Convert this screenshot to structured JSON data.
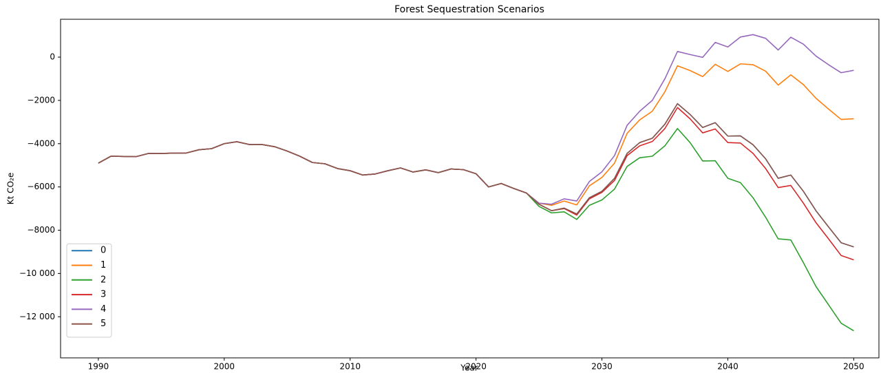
{
  "chart_data": {
    "type": "line",
    "title": "Forest Sequestration Scenarios",
    "x_label": "Year",
    "y_label": "Kt CO₂e",
    "x": [
      1990,
      1991,
      1992,
      1993,
      1994,
      1995,
      1996,
      1997,
      1998,
      1999,
      2000,
      2001,
      2002,
      2003,
      2004,
      2005,
      2006,
      2007,
      2008,
      2009,
      2010,
      2011,
      2012,
      2013,
      2014,
      2015,
      2016,
      2017,
      2018,
      2019,
      2020,
      2021,
      2022,
      2023,
      2024,
      2025,
      2026,
      2027,
      2028,
      2029,
      2030,
      2031,
      2032,
      2033,
      2034,
      2035,
      2036,
      2037,
      2038,
      2039,
      2040,
      2041,
      2042,
      2043,
      2044,
      2045,
      2046,
      2047,
      2048,
      2049,
      2050
    ],
    "series": [
      {
        "name": "0",
        "color": "#1f77b4",
        "values": [
          -4900,
          -4580,
          -4590,
          -4600,
          -4450,
          -4450,
          -4440,
          -4430,
          -4280,
          -4230,
          -4000,
          -3910,
          -4040,
          -4040,
          -4140,
          -4340,
          -4580,
          -4870,
          -4930,
          -5150,
          -5250,
          -5450,
          -5400,
          -5250,
          -5120,
          -5310,
          -5210,
          -5340,
          -5170,
          -5200,
          -5390,
          -6000,
          -5840,
          -6070,
          -6280,
          -6800,
          -7100,
          -6980,
          -7250,
          -6500,
          -6200,
          -5600,
          -4450,
          -3950,
          -3750,
          -3100,
          -2150,
          -2650,
          -3250,
          -3030,
          -3650,
          -3640,
          -4050,
          -4700,
          -5600,
          -5450,
          -6200,
          -7100,
          -7850,
          -8580,
          -8770
        ]
      },
      {
        "name": "1",
        "color": "#ff7f0e",
        "values": [
          -4900,
          -4580,
          -4590,
          -4600,
          -4450,
          -4450,
          -4440,
          -4430,
          -4280,
          -4230,
          -4000,
          -3910,
          -4040,
          -4040,
          -4140,
          -4340,
          -4580,
          -4870,
          -4930,
          -5150,
          -5250,
          -5450,
          -5400,
          -5250,
          -5120,
          -5310,
          -5210,
          -5340,
          -5170,
          -5200,
          -5390,
          -6000,
          -5840,
          -6070,
          -6280,
          -6750,
          -6850,
          -6650,
          -6830,
          -5950,
          -5560,
          -4900,
          -3520,
          -2900,
          -2500,
          -1600,
          -400,
          -620,
          -900,
          -330,
          -660,
          -310,
          -350,
          -650,
          -1290,
          -820,
          -1270,
          -1900,
          -2400,
          -2880,
          -2850
        ]
      },
      {
        "name": "2",
        "color": "#2ca02c",
        "values": [
          -4900,
          -4580,
          -4590,
          -4600,
          -4450,
          -4450,
          -4440,
          -4430,
          -4280,
          -4230,
          -4000,
          -3910,
          -4040,
          -4040,
          -4140,
          -4340,
          -4580,
          -4870,
          -4930,
          -5150,
          -5250,
          -5450,
          -5400,
          -5250,
          -5120,
          -5310,
          -5210,
          -5340,
          -5170,
          -5200,
          -5390,
          -6000,
          -5840,
          -6070,
          -6280,
          -6900,
          -7200,
          -7150,
          -7500,
          -6850,
          -6600,
          -6100,
          -5050,
          -4650,
          -4580,
          -4100,
          -3300,
          -3950,
          -4800,
          -4790,
          -5600,
          -5800,
          -6500,
          -7400,
          -8400,
          -8450,
          -9500,
          -10600,
          -11450,
          -12300,
          -12650
        ]
      },
      {
        "name": "3",
        "color": "#d62728",
        "values": [
          -4900,
          -4580,
          -4590,
          -4600,
          -4450,
          -4450,
          -4440,
          -4430,
          -4280,
          -4230,
          -4000,
          -3910,
          -4040,
          -4040,
          -4140,
          -4340,
          -4580,
          -4870,
          -4930,
          -5150,
          -5250,
          -5450,
          -5400,
          -5250,
          -5120,
          -5310,
          -5210,
          -5340,
          -5170,
          -5200,
          -5390,
          -6000,
          -5840,
          -6070,
          -6280,
          -6800,
          -7100,
          -7000,
          -7300,
          -6550,
          -6250,
          -5700,
          -4550,
          -4100,
          -3900,
          -3300,
          -2330,
          -2850,
          -3500,
          -3320,
          -3950,
          -3970,
          -4450,
          -5150,
          -6030,
          -5930,
          -6750,
          -7650,
          -8400,
          -9170,
          -9370
        ]
      },
      {
        "name": "4",
        "color": "#9467bd",
        "values": [
          -4900,
          -4580,
          -4590,
          -4600,
          -4450,
          -4450,
          -4440,
          -4430,
          -4280,
          -4230,
          -4000,
          -3910,
          -4040,
          -4040,
          -4140,
          -4340,
          -4580,
          -4870,
          -4930,
          -5150,
          -5250,
          -5450,
          -5400,
          -5250,
          -5120,
          -5310,
          -5210,
          -5340,
          -5170,
          -5200,
          -5390,
          -6000,
          -5840,
          -6070,
          -6280,
          -6750,
          -6800,
          -6550,
          -6650,
          -5750,
          -5300,
          -4550,
          -3150,
          -2500,
          -2000,
          -1000,
          260,
          120,
          -10,
          680,
          470,
          930,
          1040,
          870,
          330,
          920,
          600,
          50,
          -350,
          -720,
          -610
        ]
      },
      {
        "name": "5",
        "color": "#8c564b",
        "values": [
          -4900,
          -4580,
          -4590,
          -4600,
          -4450,
          -4450,
          -4440,
          -4430,
          -4280,
          -4230,
          -4000,
          -3910,
          -4040,
          -4040,
          -4140,
          -4340,
          -4580,
          -4870,
          -4930,
          -5150,
          -5250,
          -5450,
          -5400,
          -5250,
          -5120,
          -5310,
          -5210,
          -5340,
          -5170,
          -5200,
          -5390,
          -6000,
          -5840,
          -6070,
          -6280,
          -6800,
          -7100,
          -6980,
          -7250,
          -6500,
          -6200,
          -5600,
          -4450,
          -3950,
          -3750,
          -3100,
          -2150,
          -2650,
          -3250,
          -3030,
          -3650,
          -3640,
          -4050,
          -4700,
          -5600,
          -5450,
          -6200,
          -7100,
          -7850,
          -8580,
          -8770
        ]
      }
    ],
    "xlim": [
      1987,
      2052
    ],
    "xticks": [
      1990,
      2000,
      2010,
      2020,
      2030,
      2040,
      2050
    ],
    "ylim": [
      -13900,
      1750
    ],
    "yticks": [
      {
        "value": -12000,
        "label": "−12 000"
      },
      {
        "value": -10000,
        "label": "−10 000"
      },
      {
        "value": -8000,
        "label": "−8000"
      },
      {
        "value": -6000,
        "label": "−6000"
      },
      {
        "value": -4000,
        "label": "−4000"
      },
      {
        "value": -2000,
        "label": "−2000"
      },
      0
    ],
    "grid": false,
    "legend": "lower left"
  }
}
